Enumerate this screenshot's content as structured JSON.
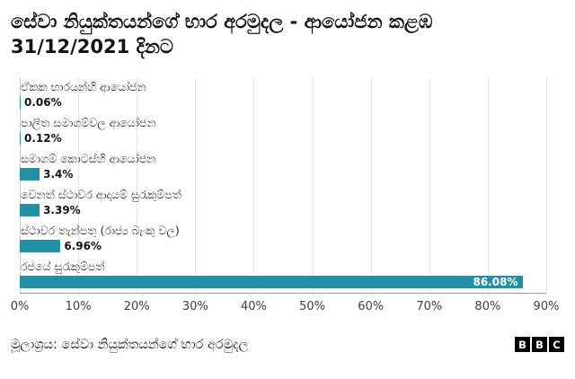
{
  "header": {
    "title_line1": "සේවා නියුක්තයන්ගේ භාර අරමුදල - ආයෝජන කළඹ",
    "title_line2": "31/12/2021 දිනට"
  },
  "chart_data": {
    "type": "bar",
    "orientation": "horizontal",
    "title": "සේවා නියුක්තයන්ගේ භාර අරමුදල - ආයෝජන කළඹ 31/12/2021 දිනට",
    "categories": [
      "ඒකක භාරයන්හි ආයෝජන",
      "පාලිත සමාගම්වල ආයෝජන",
      "සමාගම් කොටස්හි ආයෝජන",
      "වෙනත් ස්ථාවර ආදායම් සුරැකුම්පත්",
      "ස්ථාවර තැන්පතු (රාජ්‍ය බැංකු වල)",
      "රජයේ සුරැකුම්පත්"
    ],
    "values": [
      0.06,
      0.12,
      3.4,
      3.39,
      6.96,
      86.08
    ],
    "value_labels": [
      "0.06%",
      "0.12%",
      "3.4%",
      "3.39%",
      "6.96%",
      "86.08%"
    ],
    "xlabel": "",
    "ylabel": "",
    "xlim": [
      0,
      90
    ],
    "x_ticks": [
      "0%",
      "10%",
      "20%",
      "30%",
      "40%",
      "50%",
      "60%",
      "70%",
      "80%",
      "90%"
    ],
    "grid": true,
    "legend": false,
    "bar_color": "#2391a5",
    "inside_label_color": "#ffffff"
  },
  "footer": {
    "source": "මූලාශ්‍රය: සේවා නියුක්තයන්ගේ භාර අරමුදල",
    "logo_letters": [
      "B",
      "B",
      "C"
    ]
  }
}
